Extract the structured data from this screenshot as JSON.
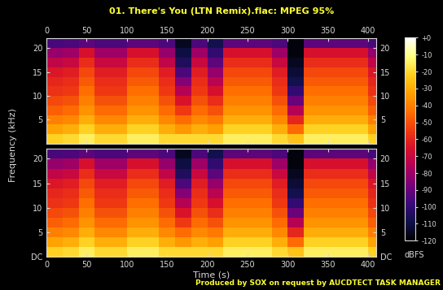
{
  "chart_data": [
    {
      "type": "heatmap",
      "title": "01. There's You (LTN Remix).flac: MPEG 95%",
      "ylabel": "Frequency (kHz)",
      "annotations": [
        "Produced by SOX on request by AUCDTECT TASK MANAGER"
      ],
      "time_edges": [
        0,
        20,
        40,
        60,
        80,
        100,
        120,
        140,
        160,
        180,
        200,
        220,
        240,
        260,
        280,
        300,
        320,
        340,
        360,
        380,
        400,
        410
      ],
      "freq_edges": [
        0,
        2,
        4,
        6,
        8,
        10,
        12,
        14,
        16,
        18,
        20,
        22.05
      ],
      "cells": [
        [
          -22,
          -20,
          -15,
          -20,
          -20,
          -15,
          -15,
          -20,
          -20,
          -20,
          -20,
          -15,
          -15,
          -15,
          -20,
          -25,
          -15,
          -15,
          -15,
          -15,
          -22
        ],
        [
          -32,
          -30,
          -22,
          -30,
          -30,
          -22,
          -22,
          -30,
          -35,
          -30,
          -33,
          -22,
          -22,
          -22,
          -30,
          -45,
          -22,
          -22,
          -22,
          -22,
          -32
        ],
        [
          -40,
          -38,
          -30,
          -38,
          -38,
          -30,
          -30,
          -38,
          -45,
          -38,
          -42,
          -30,
          -30,
          -30,
          -38,
          -60,
          -30,
          -30,
          -30,
          -30,
          -40
        ],
        [
          -47,
          -45,
          -36,
          -45,
          -45,
          -36,
          -36,
          -45,
          -55,
          -45,
          -50,
          -36,
          -36,
          -36,
          -45,
          -75,
          -36,
          -36,
          -36,
          -36,
          -47
        ],
        [
          -52,
          -50,
          -40,
          -50,
          -50,
          -40,
          -40,
          -50,
          -65,
          -50,
          -58,
          -40,
          -40,
          -40,
          -50,
          -90,
          -40,
          -40,
          -40,
          -40,
          -52
        ],
        [
          -57,
          -55,
          -44,
          -55,
          -55,
          -44,
          -44,
          -55,
          -75,
          -55,
          -66,
          -44,
          -44,
          -44,
          -55,
          -100,
          -44,
          -44,
          -44,
          -44,
          -57
        ],
        [
          -60,
          -58,
          -48,
          -58,
          -58,
          -48,
          -48,
          -58,
          -85,
          -58,
          -74,
          -48,
          -48,
          -48,
          -58,
          -108,
          -48,
          -48,
          -48,
          -48,
          -60
        ],
        [
          -64,
          -62,
          -52,
          -62,
          -62,
          -52,
          -52,
          -62,
          -95,
          -62,
          -82,
          -52,
          -52,
          -52,
          -62,
          -112,
          -52,
          -52,
          -52,
          -52,
          -64
        ],
        [
          -72,
          -70,
          -58,
          -70,
          -70,
          -58,
          -58,
          -72,
          -105,
          -70,
          -92,
          -58,
          -58,
          -58,
          -70,
          -115,
          -58,
          -58,
          -58,
          -58,
          -72
        ],
        [
          -82,
          -80,
          -66,
          -80,
          -80,
          -66,
          -66,
          -82,
          -110,
          -80,
          -100,
          -66,
          -66,
          -66,
          -80,
          -118,
          -66,
          -66,
          -66,
          -66,
          -82
        ],
        [
          -96,
          -95,
          -92,
          -95,
          -95,
          -92,
          -92,
          -95,
          -115,
          -95,
          -108,
          -92,
          -92,
          -92,
          -95,
          -118,
          -92,
          -92,
          -92,
          -92,
          -96
        ]
      ],
      "xlim": [
        0,
        410
      ],
      "ylim": [
        0,
        22.05
      ],
      "xticks": [
        0,
        50,
        100,
        150,
        200,
        250,
        300,
        350,
        400
      ],
      "yticks": [
        5,
        10,
        15,
        20
      ],
      "colorbar": {
        "range": [
          -120,
          0
        ],
        "ticks": [
          {
            "value": 0,
            "label": "+0"
          },
          -10,
          -20,
          -30,
          -40,
          -50,
          -60,
          -70,
          -80,
          -90,
          -100,
          -110,
          -120
        ],
        "label": "dBFS"
      }
    },
    {
      "type": "heatmap",
      "xlabel": "Time (s)",
      "time_edges": [
        0,
        20,
        40,
        60,
        80,
        100,
        120,
        140,
        160,
        180,
        200,
        220,
        240,
        260,
        280,
        300,
        320,
        340,
        360,
        380,
        400,
        410
      ],
      "freq_edges": [
        0,
        2,
        4,
        6,
        8,
        10,
        12,
        14,
        16,
        18,
        20,
        22.05
      ],
      "cells": [
        [
          -22,
          -20,
          -15,
          -20,
          -20,
          -15,
          -15,
          -20,
          -20,
          -20,
          -20,
          -15,
          -15,
          -15,
          -20,
          -25,
          -15,
          -15,
          -15,
          -15,
          -22
        ],
        [
          -32,
          -30,
          -22,
          -30,
          -30,
          -22,
          -22,
          -30,
          -35,
          -30,
          -33,
          -22,
          -22,
          -22,
          -30,
          -45,
          -22,
          -22,
          -22,
          -22,
          -32
        ],
        [
          -40,
          -38,
          -30,
          -38,
          -38,
          -30,
          -30,
          -38,
          -45,
          -38,
          -42,
          -30,
          -30,
          -30,
          -38,
          -60,
          -30,
          -30,
          -30,
          -30,
          -40
        ],
        [
          -47,
          -45,
          -36,
          -45,
          -45,
          -36,
          -36,
          -45,
          -55,
          -45,
          -50,
          -36,
          -36,
          -36,
          -45,
          -75,
          -36,
          -36,
          -36,
          -36,
          -47
        ],
        [
          -52,
          -50,
          -40,
          -50,
          -50,
          -40,
          -40,
          -50,
          -65,
          -50,
          -58,
          -40,
          -40,
          -40,
          -50,
          -90,
          -40,
          -40,
          -40,
          -40,
          -52
        ],
        [
          -57,
          -55,
          -44,
          -55,
          -55,
          -44,
          -44,
          -55,
          -75,
          -55,
          -66,
          -44,
          -44,
          -44,
          -55,
          -100,
          -44,
          -44,
          -44,
          -44,
          -57
        ],
        [
          -60,
          -58,
          -48,
          -58,
          -58,
          -48,
          -48,
          -58,
          -85,
          -58,
          -74,
          -48,
          -48,
          -48,
          -58,
          -108,
          -48,
          -48,
          -48,
          -48,
          -60
        ],
        [
          -64,
          -62,
          -52,
          -62,
          -62,
          -52,
          -52,
          -62,
          -95,
          -62,
          -82,
          -52,
          -52,
          -52,
          -62,
          -112,
          -52,
          -52,
          -52,
          -52,
          -64
        ],
        [
          -72,
          -70,
          -58,
          -70,
          -70,
          -58,
          -58,
          -72,
          -105,
          -70,
          -92,
          -58,
          -58,
          -58,
          -70,
          -115,
          -58,
          -58,
          -58,
          -58,
          -72
        ],
        [
          -82,
          -80,
          -66,
          -80,
          -80,
          -66,
          -66,
          -82,
          -110,
          -80,
          -100,
          -66,
          -66,
          -66,
          -80,
          -118,
          -66,
          -66,
          -66,
          -66,
          -82
        ],
        [
          -96,
          -95,
          -92,
          -95,
          -95,
          -92,
          -92,
          -95,
          -115,
          -95,
          -108,
          -92,
          -92,
          -92,
          -95,
          -118,
          -92,
          -92,
          -92,
          -92,
          -96
        ]
      ],
      "xlim": [
        0,
        410
      ],
      "ylim": [
        0,
        22.05
      ],
      "xticks": [
        0,
        50,
        100,
        150,
        200,
        250,
        300,
        350,
        400
      ],
      "yticks": [
        {
          "value": 0,
          "label": "DC"
        },
        5,
        10,
        15,
        20
      ]
    }
  ]
}
